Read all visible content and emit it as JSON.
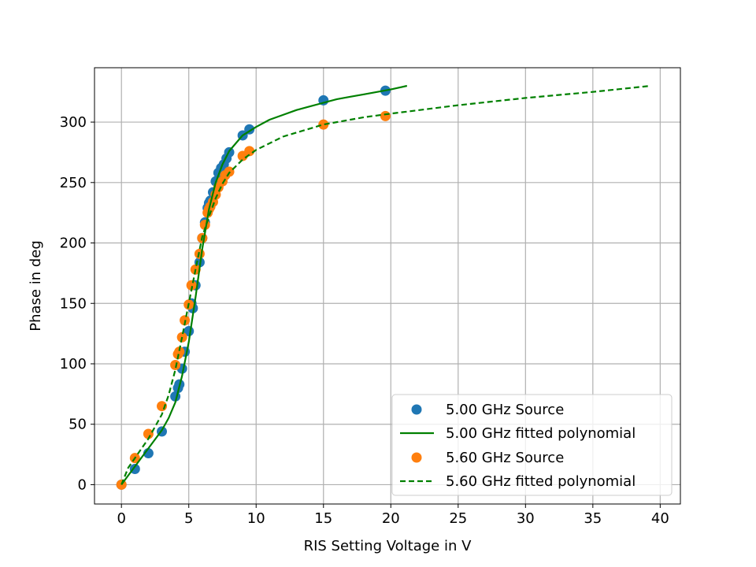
{
  "chart_data": {
    "type": "scatter",
    "title": "",
    "xlabel": "RIS Setting Voltage in V",
    "ylabel": "Phase in deg",
    "xlim": [
      -2,
      41.5
    ],
    "ylim": [
      -16,
      345
    ],
    "xticks": [
      0,
      5,
      10,
      15,
      20,
      25,
      30,
      35,
      40
    ],
    "yticks": [
      0,
      50,
      100,
      150,
      200,
      250,
      300
    ],
    "grid": true,
    "legend_position": "lower right",
    "series": [
      {
        "name": "5.00 GHz Source",
        "kind": "scatter",
        "color": "#1f77b4",
        "x": [
          0,
          1,
          2,
          3,
          4,
          4.2,
          4.3,
          4.5,
          4.7,
          5.0,
          5.2,
          5.3,
          5.5,
          5.8,
          6.0,
          6.2,
          6.4,
          6.5,
          6.6,
          6.8,
          7.0,
          7.2,
          7.4,
          7.6,
          7.8,
          8.0,
          9.0,
          9.5,
          15.0,
          19.6
        ],
        "y": [
          0,
          13,
          26,
          44,
          73,
          80,
          83,
          96,
          110,
          127,
          150,
          146,
          165,
          184,
          204,
          217,
          229,
          233,
          235,
          242,
          251,
          258,
          262,
          265,
          270,
          275,
          289,
          294,
          318,
          326
        ]
      },
      {
        "name": "5.00 GHz fitted polynomial",
        "kind": "line",
        "style": "solid",
        "color": "#008000",
        "x": [
          0,
          1,
          2,
          3,
          3.5,
          4,
          4.5,
          5,
          5.5,
          6,
          6.5,
          7,
          7.5,
          8,
          9,
          10,
          11,
          12,
          13,
          14,
          15,
          16,
          17,
          18,
          19,
          20,
          21.2
        ],
        "y": [
          0,
          15,
          30,
          45,
          55,
          68,
          90,
          118,
          155,
          195,
          228,
          250,
          265,
          276,
          289,
          296,
          302,
          306,
          310,
          313,
          316,
          319,
          321,
          323,
          325,
          327,
          330
        ]
      },
      {
        "name": "5.60 GHz Source",
        "kind": "scatter",
        "color": "#ff7f0e",
        "x": [
          0,
          1,
          2,
          3,
          4,
          4.2,
          4.3,
          4.5,
          4.7,
          5.0,
          5.2,
          5.5,
          5.8,
          6.0,
          6.2,
          6.4,
          6.5,
          6.6,
          6.8,
          7.0,
          7.2,
          7.5,
          7.7,
          8.0,
          9.0,
          9.5,
          15.0,
          19.6
        ],
        "y": [
          0,
          22,
          42,
          65,
          99,
          108,
          110,
          122,
          136,
          149,
          165,
          178,
          191,
          204,
          215,
          225,
          228,
          230,
          234,
          240,
          246,
          251,
          256,
          259,
          272,
          276,
          298,
          305
        ]
      },
      {
        "name": "5.60 GHz fitted polynomial",
        "kind": "line",
        "style": "dashed",
        "color": "#008000",
        "x": [
          0,
          0.5,
          1,
          2,
          3,
          3.5,
          4,
          4.5,
          5,
          5.5,
          6,
          6.5,
          7,
          7.5,
          8,
          9,
          10,
          12,
          15,
          18,
          20,
          25,
          30,
          35,
          39.3
        ],
        "y": [
          0,
          14,
          22,
          38,
          58,
          74,
          95,
          122,
          150,
          178,
          205,
          222,
          237,
          249,
          258,
          269,
          277,
          288,
          298,
          304,
          307,
          314,
          320,
          325,
          330
        ]
      }
    ]
  }
}
